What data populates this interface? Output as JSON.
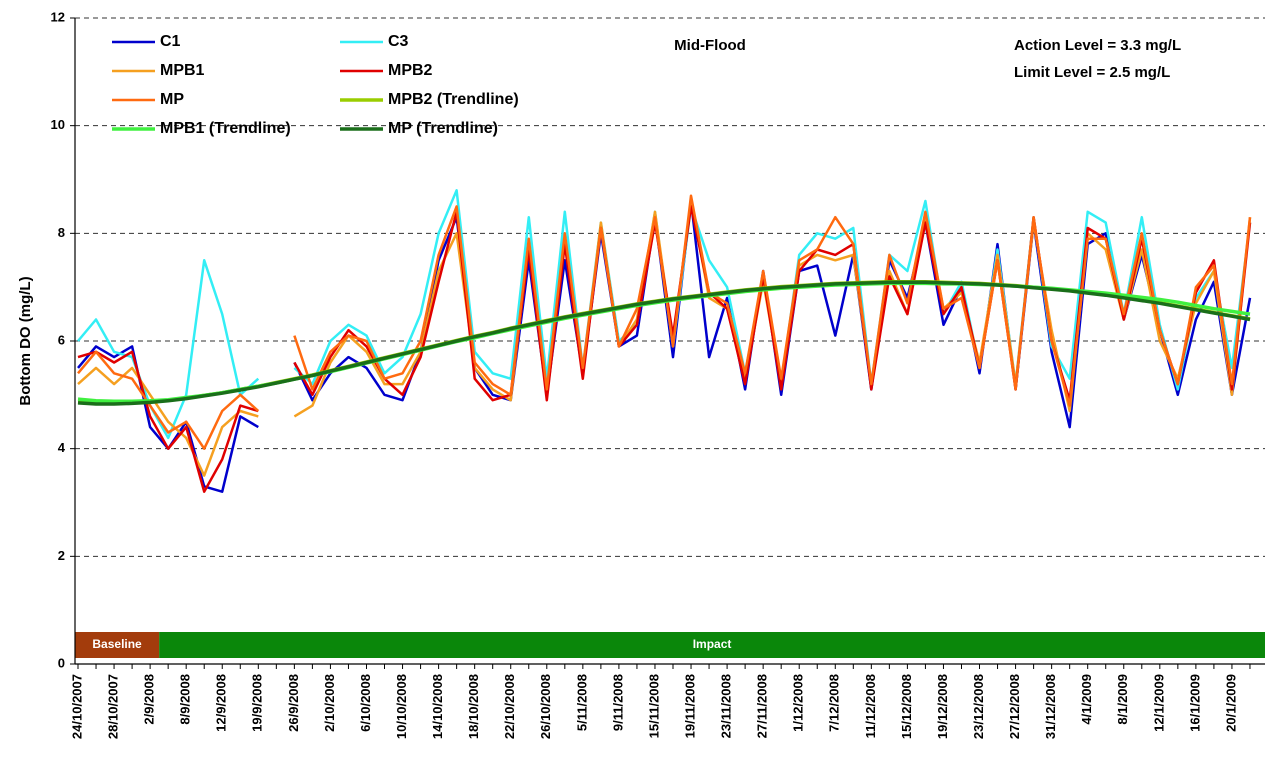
{
  "chart_data": {
    "type": "line",
    "ylabel": "Bottom DO (mg/L)",
    "annotations": [
      "Mid-Flood",
      "Action Level = 3.3 mg/L",
      "Limit Level = 2.5 mg/L"
    ],
    "ylim": [
      0,
      12
    ],
    "yticks": [
      0,
      2,
      4,
      6,
      8,
      10,
      12
    ],
    "grid": true,
    "categories": [
      "24/10/2007",
      null,
      "28/10/2007",
      null,
      "2/9/2008",
      null,
      "8/9/2008",
      null,
      "12/9/2008",
      null,
      "19/9/2008",
      null,
      "26/9/2008",
      null,
      "2/10/2008",
      null,
      "6/10/2008",
      null,
      "10/10/2008",
      null,
      "14/10/2008",
      null,
      "18/10/2008",
      null,
      "22/10/2008",
      null,
      "26/10/2008",
      null,
      "5/11/2008",
      null,
      "9/11/2008",
      null,
      "15/11/2008",
      null,
      "19/11/2008",
      null,
      "23/11/2008",
      null,
      "27/11/2008",
      null,
      "1/12/2008",
      null,
      "7/12/2008",
      null,
      "11/12/2008",
      null,
      "15/12/2008",
      null,
      "19/12/2008",
      null,
      "23/12/2008",
      null,
      "27/12/2008",
      null,
      "31/12/2008",
      null,
      "4/1/2009",
      null,
      "8/1/2009",
      null,
      "12/1/2009",
      null,
      "16/1/2009",
      null,
      "20/1/2009",
      null
    ],
    "phases": [
      {
        "label": "Baseline",
        "color": "#a33c0c",
        "start": 0,
        "end": 4
      },
      {
        "label": "Impact",
        "color": "#0a870a",
        "start": 5,
        "end": 65
      }
    ],
    "series": [
      {
        "name": "C1",
        "color": "#0000cc",
        "width": 2.5,
        "values": [
          5.5,
          5.9,
          5.7,
          5.9,
          4.4,
          4.0,
          4.5,
          3.3,
          3.2,
          4.6,
          4.4,
          null,
          5.6,
          4.9,
          5.4,
          5.7,
          5.5,
          5.0,
          4.9,
          5.8,
          7.5,
          8.3,
          5.5,
          5.0,
          4.9,
          7.5,
          5.0,
          7.5,
          5.4,
          8.0,
          5.9,
          6.1,
          8.3,
          5.7,
          8.6,
          5.7,
          6.8,
          5.1,
          7.3,
          5.0,
          7.3,
          7.4,
          6.1,
          7.6,
          5.1,
          7.5,
          6.8,
          8.2,
          6.3,
          7.0,
          5.4,
          7.8,
          5.1,
          8.2,
          5.8,
          4.4,
          7.8,
          8.0,
          6.4,
          7.6,
          6.2,
          5.0,
          6.4,
          7.1,
          5.0,
          6.8
        ]
      },
      {
        "name": "C3",
        "color": "#33eef5",
        "width": 2.5,
        "values": [
          6.0,
          6.4,
          5.8,
          5.7,
          4.8,
          4.2,
          5.0,
          7.5,
          6.5,
          5.0,
          5.3,
          null,
          5.5,
          5.2,
          6.0,
          6.3,
          6.1,
          5.4,
          5.7,
          6.5,
          8.0,
          8.8,
          5.8,
          5.4,
          5.3,
          8.3,
          5.3,
          8.4,
          5.5,
          8.2,
          6.0,
          6.3,
          8.4,
          5.9,
          8.5,
          7.5,
          7.0,
          5.4,
          7.2,
          5.2,
          7.6,
          8.0,
          7.9,
          8.1,
          5.2,
          7.6,
          7.3,
          8.6,
          6.5,
          7.1,
          5.5,
          7.7,
          5.2,
          8.3,
          5.9,
          5.3,
          8.4,
          8.2,
          6.5,
          8.3,
          6.3,
          5.1,
          6.8,
          7.3,
          5.5,
          8.2
        ]
      },
      {
        "name": "MPB1",
        "color": "#f5a020",
        "width": 2.5,
        "values": [
          5.2,
          5.5,
          5.2,
          5.5,
          5.0,
          4.5,
          4.2,
          3.5,
          4.4,
          4.7,
          4.6,
          null,
          4.6,
          4.8,
          5.6,
          6.1,
          5.8,
          5.2,
          5.2,
          5.8,
          7.3,
          8.0,
          5.5,
          5.1,
          4.9,
          7.8,
          5.0,
          7.9,
          5.4,
          8.2,
          5.9,
          6.4,
          8.4,
          6.0,
          8.6,
          6.8,
          6.6,
          5.3,
          7.1,
          5.2,
          7.4,
          7.6,
          7.5,
          7.6,
          5.2,
          7.3,
          6.5,
          8.3,
          6.6,
          6.9,
          5.6,
          7.6,
          5.2,
          8.2,
          6.2,
          4.7,
          8.0,
          7.7,
          6.4,
          7.7,
          6.0,
          5.3,
          6.7,
          7.3,
          5.0,
          8.3
        ]
      },
      {
        "name": "MPB2",
        "color": "#e00000",
        "width": 2.5,
        "values": [
          5.7,
          5.8,
          5.6,
          5.8,
          4.6,
          4.0,
          4.4,
          3.2,
          3.8,
          4.8,
          4.7,
          null,
          5.6,
          5.0,
          5.7,
          6.2,
          5.9,
          5.3,
          5.0,
          5.7,
          7.1,
          8.4,
          5.3,
          4.9,
          5.0,
          7.7,
          4.9,
          7.8,
          5.3,
          8.1,
          5.9,
          6.3,
          8.2,
          6.1,
          8.5,
          6.9,
          6.6,
          5.2,
          7.2,
          5.1,
          7.3,
          7.7,
          7.6,
          7.8,
          5.1,
          7.2,
          6.5,
          8.2,
          6.5,
          7.0,
          5.5,
          7.5,
          5.1,
          8.3,
          6.0,
          4.9,
          8.1,
          7.9,
          6.4,
          7.9,
          6.2,
          5.2,
          6.9,
          7.5,
          5.1,
          8.2
        ]
      },
      {
        "name": "MP",
        "color": "#ff6a10",
        "width": 2.5,
        "values": [
          5.4,
          5.8,
          5.4,
          5.3,
          4.8,
          4.3,
          4.5,
          4.0,
          4.7,
          5.0,
          4.7,
          null,
          6.1,
          5.1,
          5.8,
          6.1,
          6.0,
          5.3,
          5.4,
          6.0,
          7.6,
          8.5,
          5.6,
          5.2,
          5.0,
          7.9,
          5.1,
          8.0,
          5.5,
          8.1,
          5.9,
          6.6,
          8.3,
          5.9,
          8.7,
          6.9,
          6.7,
          5.4,
          7.3,
          5.3,
          7.5,
          7.7,
          8.3,
          7.8,
          5.2,
          7.6,
          6.7,
          8.4,
          6.6,
          6.8,
          5.5,
          7.5,
          5.1,
          8.3,
          6.0,
          4.8,
          7.9,
          7.9,
          6.5,
          8.0,
          6.2,
          5.2,
          7.0,
          7.4,
          5.2,
          8.3
        ]
      },
      {
        "name": "MPB2 (Trendline)",
        "color": "#9acd00",
        "width": 3.5,
        "values": [
          4.86,
          4.84,
          4.84,
          4.85,
          4.87,
          4.9,
          4.94,
          4.99,
          5.04,
          5.1,
          5.16,
          5.23,
          5.3,
          5.37,
          5.45,
          5.53,
          5.61,
          5.69,
          5.77,
          5.85,
          5.93,
          6.01,
          6.09,
          6.16,
          6.24,
          6.31,
          6.38,
          6.45,
          6.51,
          6.57,
          6.63,
          6.69,
          6.74,
          6.79,
          6.83,
          6.87,
          6.91,
          6.95,
          6.98,
          7.01,
          7.03,
          7.05,
          7.07,
          7.08,
          7.09,
          7.1,
          7.1,
          7.1,
          7.09,
          7.08,
          7.07,
          7.05,
          7.03,
          7.0,
          6.97,
          6.94,
          6.9,
          6.86,
          6.81,
          6.76,
          6.71,
          6.65,
          6.59,
          6.53,
          6.47,
          6.41
        ]
      },
      {
        "name": "MPB1 (Trendline)",
        "color": "#40f040",
        "width": 3.5,
        "values": [
          4.92,
          4.89,
          4.88,
          4.88,
          4.89,
          4.91,
          4.95,
          4.99,
          5.04,
          5.1,
          5.16,
          5.22,
          5.29,
          5.36,
          5.43,
          5.51,
          5.59,
          5.67,
          5.75,
          5.83,
          5.91,
          5.99,
          6.06,
          6.14,
          6.21,
          6.28,
          6.35,
          6.42,
          6.48,
          6.54,
          6.6,
          6.66,
          6.71,
          6.76,
          6.8,
          6.84,
          6.88,
          6.92,
          6.95,
          6.98,
          7.0,
          7.02,
          7.04,
          7.05,
          7.06,
          7.07,
          7.07,
          7.07,
          7.06,
          7.06,
          7.05,
          7.04,
          7.02,
          7.0,
          6.98,
          6.95,
          6.92,
          6.89,
          6.85,
          6.81,
          6.77,
          6.72,
          6.66,
          6.6,
          6.55,
          6.5
        ]
      },
      {
        "name": "MP (Trendline)",
        "color": "#1a6e1a",
        "width": 3.5,
        "values": [
          4.85,
          4.83,
          4.83,
          4.84,
          4.86,
          4.89,
          4.93,
          4.98,
          5.03,
          5.09,
          5.15,
          5.22,
          5.29,
          5.36,
          5.44,
          5.52,
          5.6,
          5.68,
          5.76,
          5.84,
          5.92,
          6.0,
          6.08,
          6.15,
          6.23,
          6.3,
          6.37,
          6.44,
          6.5,
          6.56,
          6.62,
          6.68,
          6.73,
          6.78,
          6.82,
          6.86,
          6.9,
          6.94,
          6.97,
          7.0,
          7.02,
          7.04,
          7.06,
          7.07,
          7.08,
          7.09,
          7.09,
          7.09,
          7.08,
          7.07,
          7.06,
          7.04,
          7.02,
          6.99,
          6.96,
          6.93,
          6.89,
          6.85,
          6.8,
          6.75,
          6.7,
          6.64,
          6.58,
          6.52,
          6.46,
          6.4
        ]
      }
    ]
  }
}
